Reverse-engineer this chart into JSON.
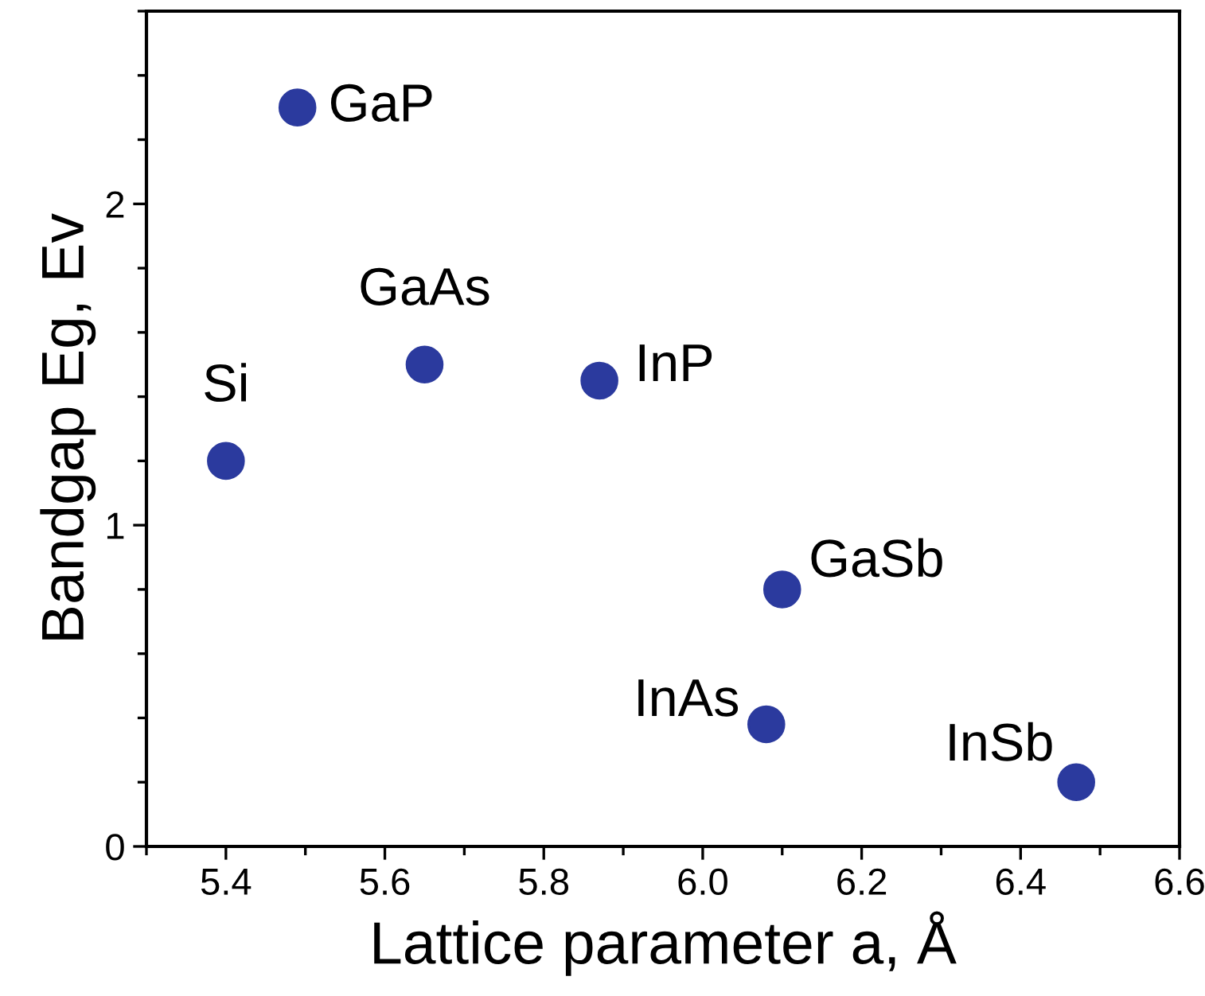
{
  "chart_data": {
    "type": "scatter",
    "xlabel": "Lattice parameter a, Å",
    "ylabel": "Bandgap Eg, Ev",
    "x": [
      5.4,
      5.49,
      5.65,
      5.87,
      6.1,
      6.08,
      6.47
    ],
    "series": [
      {
        "color": "#2b3a9e",
        "values": [
          1.2,
          2.3,
          1.5,
          1.45,
          0.8,
          0.38,
          0.2
        ]
      }
    ],
    "marker": "circle",
    "grid": false,
    "legend": false,
    "xlim": [
      5.3,
      6.6
    ],
    "xticks": [
      {
        "value": 5.4,
        "label": "5.4"
      },
      {
        "value": 5.6,
        "label": "5.6"
      },
      {
        "value": 5.8,
        "label": "5.8"
      },
      {
        "value": 6.0,
        "label": "6.0"
      },
      {
        "value": 6.2,
        "label": "6.2"
      },
      {
        "value": 6.4,
        "label": "6.4"
      },
      {
        "value": 6.6,
        "label": "6.6"
      }
    ],
    "ylim": [
      0,
      2.6
    ],
    "yticks": [
      0,
      1,
      2
    ],
    "annotations": [
      {
        "text": "Si",
        "x": 5.4,
        "y": 1.2
      },
      {
        "text": "GaP",
        "x": 5.49,
        "y": 2.3
      },
      {
        "text": "GaAs",
        "x": 5.65,
        "y": 1.5
      },
      {
        "text": "InP",
        "x": 5.87,
        "y": 1.45
      },
      {
        "text": "GaSb",
        "x": 6.1,
        "y": 0.8
      },
      {
        "text": "InAs",
        "x": 6.08,
        "y": 0.38
      },
      {
        "text": "InSb",
        "x": 6.47,
        "y": 0.2
      }
    ]
  }
}
